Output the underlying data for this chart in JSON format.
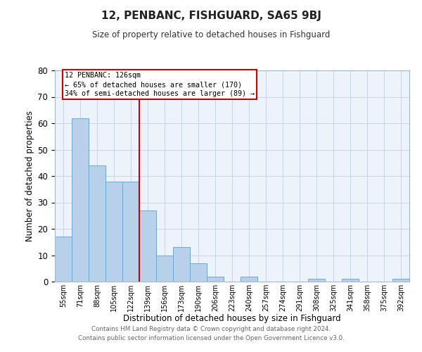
{
  "title": "12, PENBANC, FISHGUARD, SA65 9BJ",
  "subtitle": "Size of property relative to detached houses in Fishguard",
  "xlabel": "Distribution of detached houses by size in Fishguard",
  "ylabel": "Number of detached properties",
  "bar_labels": [
    "55sqm",
    "71sqm",
    "88sqm",
    "105sqm",
    "122sqm",
    "139sqm",
    "156sqm",
    "173sqm",
    "190sqm",
    "206sqm",
    "223sqm",
    "240sqm",
    "257sqm",
    "274sqm",
    "291sqm",
    "308sqm",
    "325sqm",
    "341sqm",
    "358sqm",
    "375sqm",
    "392sqm"
  ],
  "bar_values": [
    17,
    62,
    44,
    38,
    38,
    27,
    10,
    13,
    7,
    2,
    0,
    2,
    0,
    0,
    0,
    1,
    0,
    1,
    0,
    0,
    1
  ],
  "bar_color": "#b8d0ea",
  "bar_edgecolor": "#6aaad4",
  "ylim": [
    0,
    80
  ],
  "yticks": [
    0,
    10,
    20,
    30,
    40,
    50,
    60,
    70,
    80
  ],
  "vline_x": 4.5,
  "vline_color": "#cc0000",
  "annotation_title": "12 PENBANC: 126sqm",
  "annotation_line1": "← 65% of detached houses are smaller (170)",
  "annotation_line2": "34% of semi-detached houses are larger (89) →",
  "annotation_box_color": "#cc0000",
  "footer_line1": "Contains HM Land Registry data © Crown copyright and database right 2024.",
  "footer_line2": "Contains public sector information licensed under the Open Government Licence v3.0.",
  "background_color": "#ffffff",
  "plot_bg_color": "#eef2fb",
  "grid_color": "#c8d4e8"
}
